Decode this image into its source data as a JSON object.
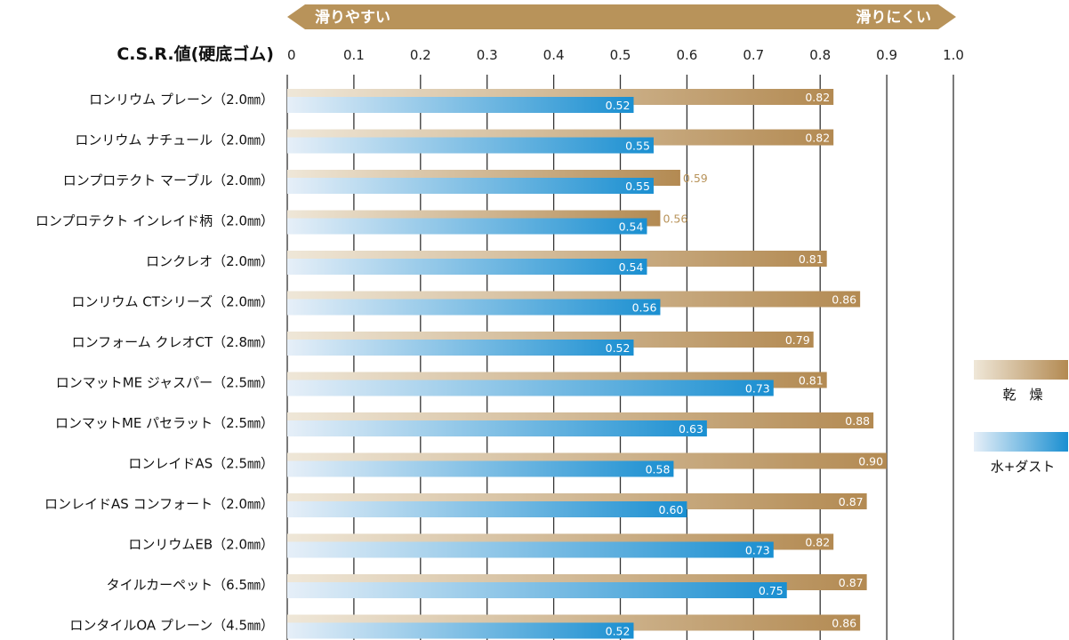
{
  "chart_data": {
    "type": "bar",
    "orientation": "horizontal",
    "value_axis_title": "C.S.R.値(硬底ゴム)",
    "xlim": [
      0,
      1.0
    ],
    "ticks": [
      "0",
      "0.1",
      "0.2",
      "0.3",
      "0.4",
      "0.5",
      "0.6",
      "0.7",
      "0.8",
      "0.9",
      "1.0"
    ],
    "direction_banner": {
      "left_label": "滑りやすい",
      "right_label": "滑りにくい",
      "color": "#b8935a"
    },
    "categories": [
      "ロンリウム プレーン（2.0㎜）",
      "ロンリウム ナチュール（2.0㎜）",
      "ロンプロテクト マーブル（2.0㎜）",
      "ロンプロテクト インレイド柄（2.0㎜）",
      "ロンクレオ（2.0㎜）",
      "ロンリウム CTシリーズ（2.0㎜）",
      "ロンフォーム クレオCT（2.8㎜）",
      "ロンマットME ジャスパー（2.5㎜）",
      "ロンマットME パセラット（2.5㎜）",
      "ロンレイドAS（2.5㎜）",
      "ロンレイドAS コンフォート（2.0㎜）",
      "ロンリウムEB（2.0㎜）",
      "タイルカーペット（6.5㎜）",
      "ロンタイルOA プレーン（4.5㎜）"
    ],
    "series": [
      {
        "name": "乾　燥",
        "color_start": "#efe7d8",
        "color_end": "#b38a52",
        "values": [
          0.82,
          0.82,
          0.59,
          0.56,
          0.81,
          0.86,
          0.79,
          0.81,
          0.88,
          0.9,
          0.87,
          0.82,
          0.87,
          0.86
        ],
        "labels": [
          "0.82",
          "0.82",
          "0.59",
          "0.56",
          "0.81",
          "0.86",
          "0.79",
          "0.81",
          "0.88",
          "0.90",
          "0.87",
          "0.82",
          "0.87",
          "0.86"
        ]
      },
      {
        "name": "水+ダスト",
        "color_start": "#e6eff8",
        "color_end": "#1a8fd1",
        "values": [
          0.52,
          0.55,
          0.55,
          0.54,
          0.54,
          0.56,
          0.52,
          0.73,
          0.63,
          0.58,
          0.6,
          0.73,
          0.75,
          0.52
        ],
        "labels": [
          "0.52",
          "0.55",
          "0.55",
          "0.54",
          "0.54",
          "0.56",
          "0.52",
          "0.73",
          "0.63",
          "0.58",
          "0.60",
          "0.73",
          "0.75",
          "0.52"
        ]
      }
    ],
    "legend_position": "right",
    "grid": true
  }
}
